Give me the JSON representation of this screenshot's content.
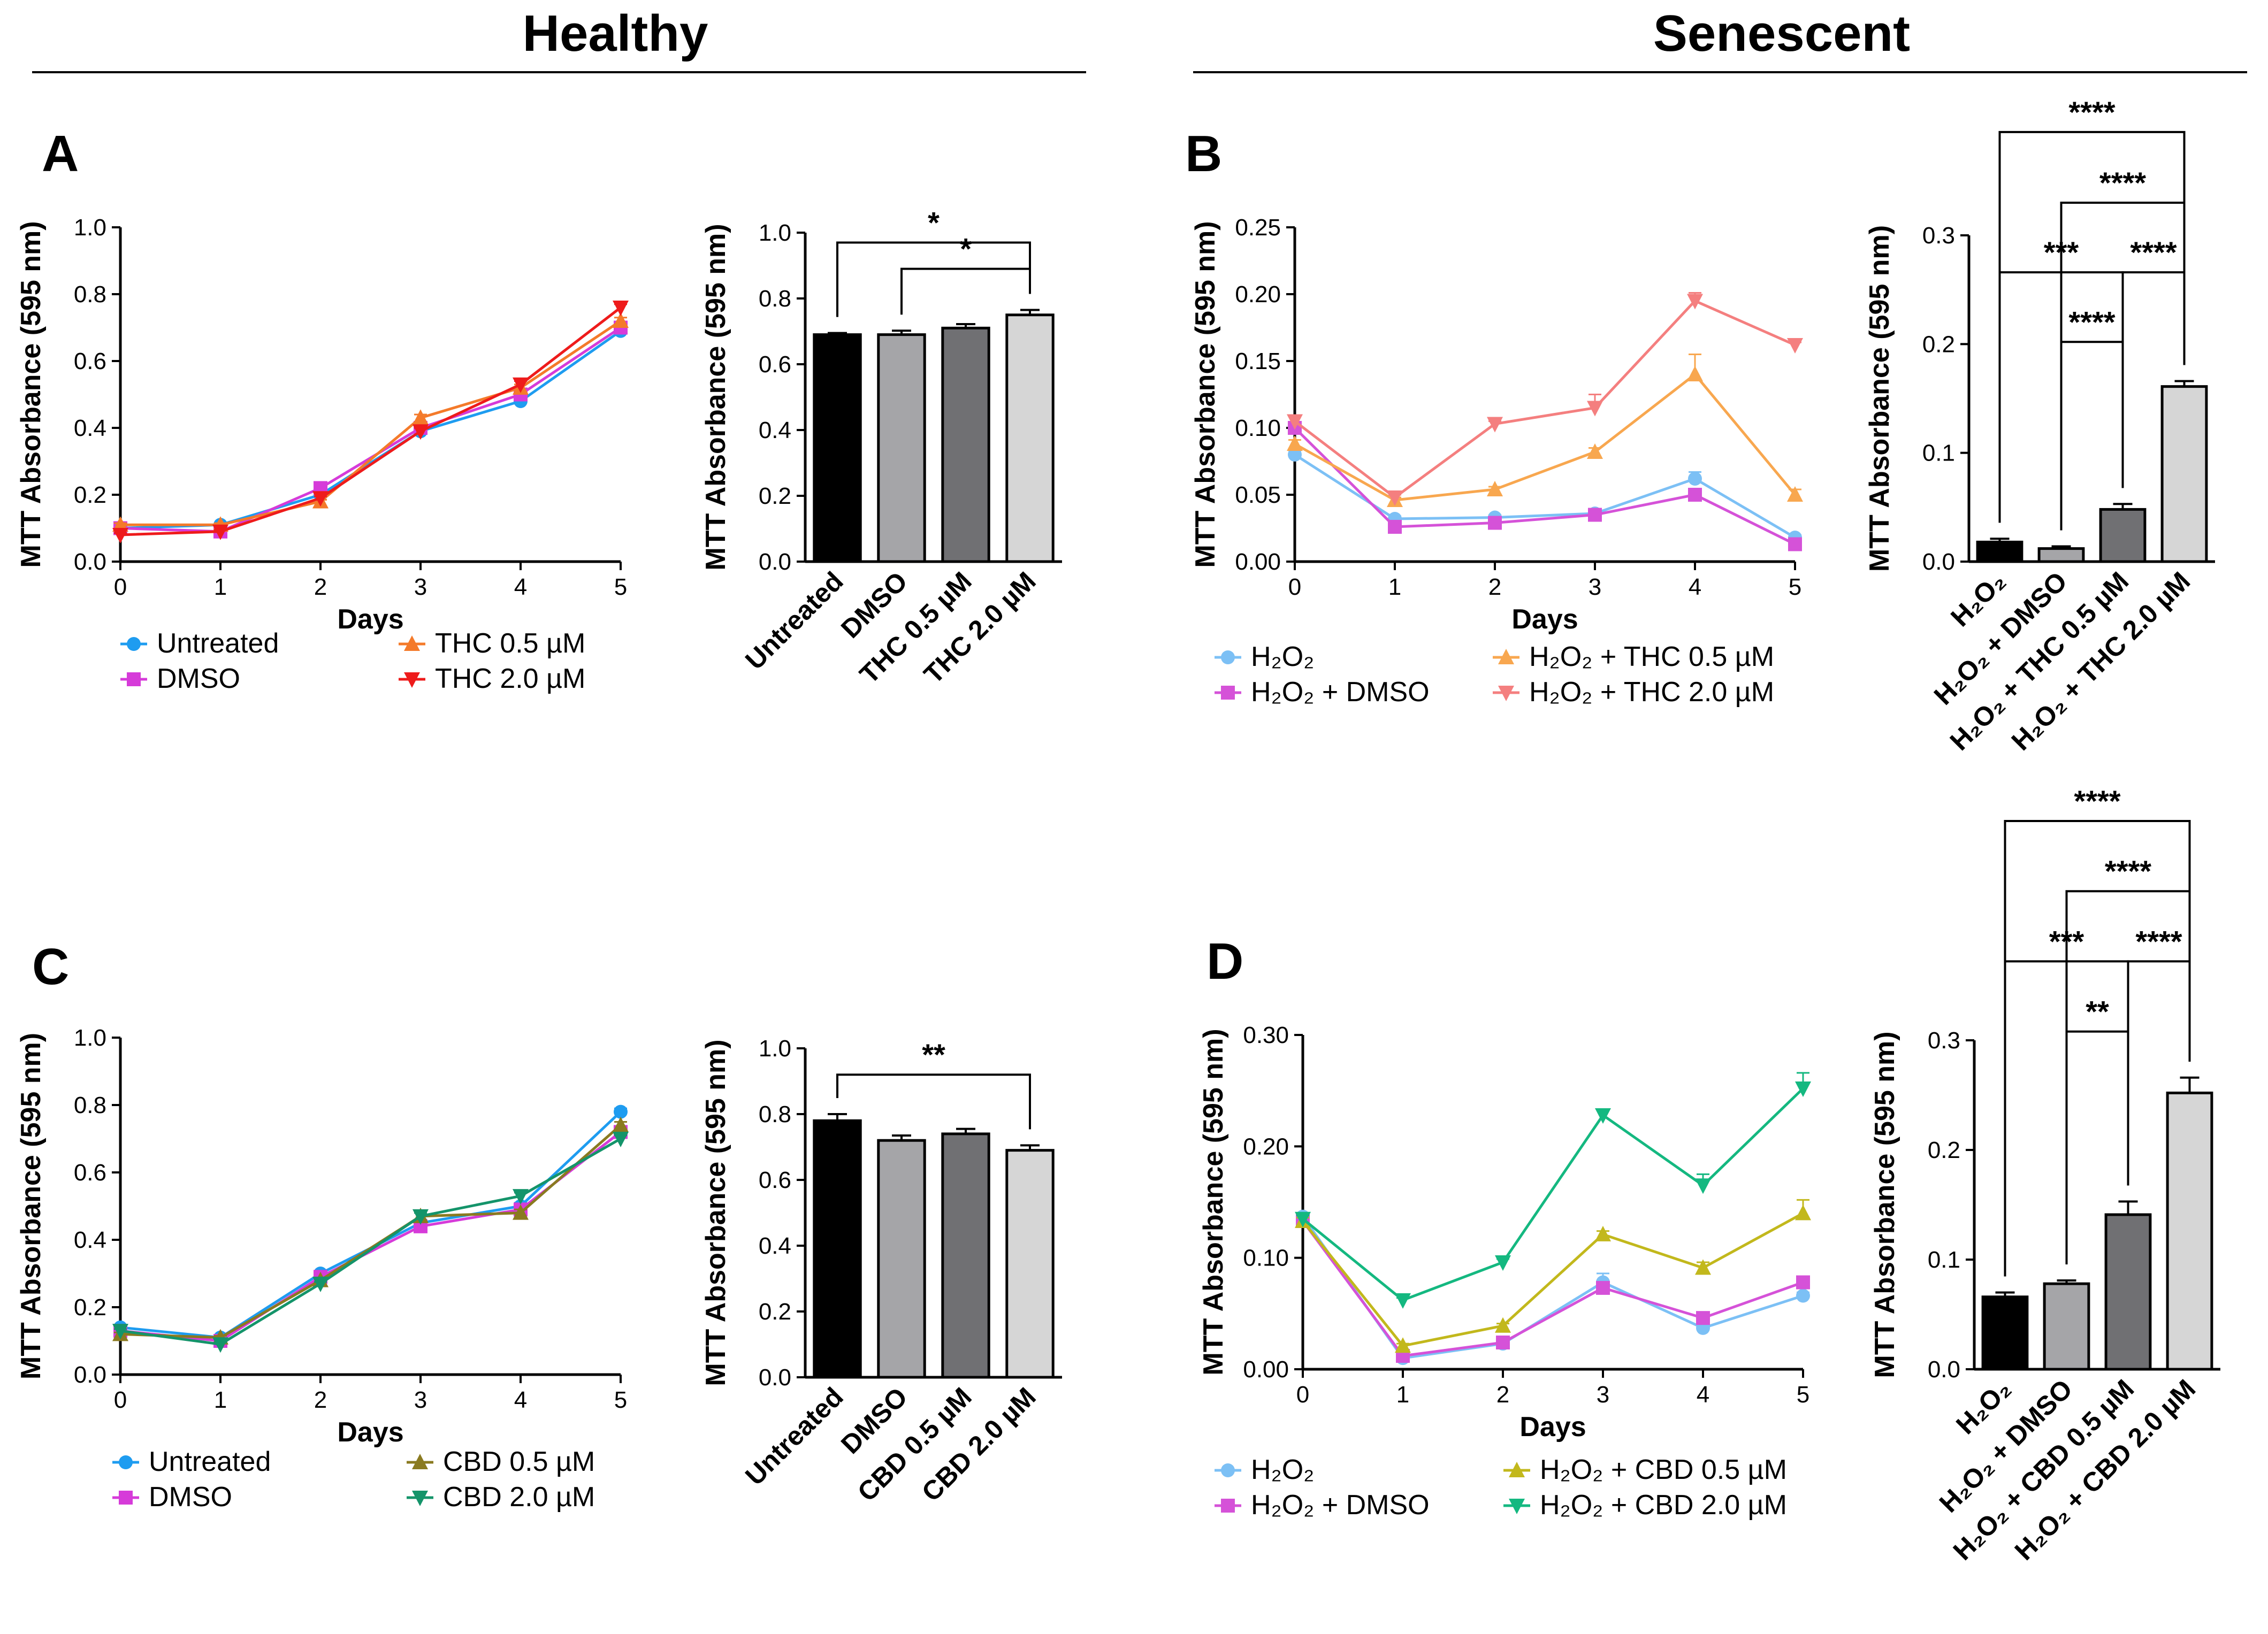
{
  "titles": {
    "healthy": "Healthy",
    "senescent": "Senescent"
  },
  "panels": {
    "A": "A",
    "B": "B",
    "C": "C",
    "D": "D"
  },
  "chart_data": [
    {
      "id": "A-line",
      "type": "line",
      "panel": "A",
      "xlabel": "Days",
      "ylabel": "MTT Absorbance (595 nm)",
      "xlim": [
        0,
        5
      ],
      "ylim": [
        0,
        1.0
      ],
      "xticks": [
        "0",
        "1",
        "2",
        "3",
        "4",
        "5"
      ],
      "yticks": [
        "0.0",
        "0.2",
        "0.4",
        "0.6",
        "0.8",
        "1.0"
      ],
      "x": [
        0,
        1,
        2,
        3,
        4,
        5
      ],
      "series": [
        {
          "name": "Untreated",
          "color": "#1e9cf0",
          "marker": "circle",
          "values": [
            0.1,
            0.11,
            0.2,
            0.39,
            0.48,
            0.69
          ],
          "errors": [
            0.005,
            0.005,
            0.005,
            0.01,
            0.01,
            0.01
          ]
        },
        {
          "name": "DMSO",
          "color": "#d63bd9",
          "marker": "square",
          "values": [
            0.1,
            0.09,
            0.22,
            0.4,
            0.5,
            0.7
          ],
          "errors": [
            0.005,
            0.005,
            0.005,
            0.01,
            0.01,
            0.01
          ]
        },
        {
          "name": "THC 0.5 µM",
          "color": "#f47a2a",
          "marker": "triangle-up",
          "values": [
            0.11,
            0.11,
            0.18,
            0.43,
            0.52,
            0.72
          ],
          "errors": [
            0.005,
            0.005,
            0.005,
            0.01,
            0.01,
            0.01
          ]
        },
        {
          "name": "THC 2.0 µM",
          "color": "#ee1b1b",
          "marker": "triangle-down",
          "values": [
            0.08,
            0.09,
            0.19,
            0.39,
            0.53,
            0.76
          ],
          "errors": [
            0.005,
            0.005,
            0.005,
            0.01,
            0.01,
            0.01
          ]
        }
      ],
      "legend_cols": [
        [
          "Untreated",
          "DMSO"
        ],
        [
          "THC 0.5 µM",
          "THC 2.0 µM"
        ]
      ]
    },
    {
      "id": "A-bar",
      "type": "bar",
      "panel": "A",
      "ylabel": "MTT Absorbance (595 nm)",
      "ylim": [
        0,
        1.0
      ],
      "yticks": [
        "0.0",
        "0.2",
        "0.4",
        "0.6",
        "0.8",
        "1.0"
      ],
      "categories": [
        "Untreated",
        "DMSO",
        "THC 0.5 µM",
        "THC 2.0 µM"
      ],
      "values": [
        0.69,
        0.69,
        0.71,
        0.75
      ],
      "errors": [
        0.005,
        0.012,
        0.012,
        0.015
      ],
      "colors": [
        "#000000",
        "#a5a5a8",
        "#707073",
        "#d6d6d6"
      ],
      "significance": [
        {
          "from": 0,
          "to": 3,
          "label": "*",
          "y": 0.97
        },
        {
          "from": 1,
          "to": 3,
          "label": "*",
          "y": 0.89
        }
      ]
    },
    {
      "id": "B-line",
      "type": "line",
      "panel": "B",
      "xlabel": "Days",
      "ylabel": "MTT Absorbance (595 nm)",
      "xlim": [
        0,
        5
      ],
      "ylim": [
        0,
        0.25
      ],
      "xticks": [
        "0",
        "1",
        "2",
        "3",
        "4",
        "5"
      ],
      "yticks": [
        "0.00",
        "0.05",
        "0.10",
        "0.15",
        "0.20",
        "0.25"
      ],
      "x": [
        0,
        1,
        2,
        3,
        4,
        5
      ],
      "series": [
        {
          "name": "H₂O₂",
          "color": "#7cc0f5",
          "marker": "circle",
          "values": [
            0.08,
            0.032,
            0.033,
            0.036,
            0.062,
            0.018
          ],
          "errors": [
            0.003,
            0.002,
            0.002,
            0.002,
            0.005,
            0.002
          ]
        },
        {
          "name": "H₂O₂ + DMSO",
          "color": "#d552d8",
          "marker": "square",
          "values": [
            0.1,
            0.026,
            0.029,
            0.035,
            0.05,
            0.013
          ],
          "errors": [
            0.003,
            0.002,
            0.002,
            0.002,
            0.003,
            0.002
          ]
        },
        {
          "name": "H₂O₂ + THC 0.5 µM",
          "color": "#f8a74f",
          "marker": "triangle-up",
          "values": [
            0.088,
            0.046,
            0.054,
            0.082,
            0.14,
            0.05
          ],
          "errors": [
            0.003,
            0.002,
            0.002,
            0.003,
            0.015,
            0.004
          ]
        },
        {
          "name": "H₂O₂ + THC 2.0 µM",
          "color": "#f47f7f",
          "marker": "triangle-down",
          "values": [
            0.105,
            0.048,
            0.103,
            0.115,
            0.195,
            0.162
          ],
          "errors": [
            0.004,
            0.002,
            0.002,
            0.01,
            0.006,
            0.002
          ]
        }
      ],
      "legend_cols": [
        [
          "H₂O₂",
          "H₂O₂ + DMSO"
        ],
        [
          "H₂O₂ + THC 0.5 µM",
          "H₂O₂ + THC 2.0 µM"
        ]
      ]
    },
    {
      "id": "B-bar",
      "type": "bar",
      "panel": "B",
      "ylabel": "MTT Absorbance (595 nm)",
      "ylim": [
        0,
        0.3
      ],
      "yticks": [
        "0.0",
        "0.1",
        "0.2",
        "0.3"
      ],
      "categories": [
        "H₂O₂",
        "H₂O₂ + DMSO",
        "H₂O₂ + THC 0.5 µM",
        "H₂O₂ + THC 2.0 µM"
      ],
      "values": [
        0.018,
        0.012,
        0.048,
        0.161
      ],
      "errors": [
        0.003,
        0.002,
        0.005,
        0.005
      ],
      "colors": [
        "#000000",
        "#a5a5a8",
        "#707073",
        "#d6d6d6"
      ],
      "significance": [
        {
          "from": 0,
          "to": 3,
          "label": "****",
          "y": 0.395
        },
        {
          "from": 1,
          "to": 3,
          "label": "****",
          "y": 0.33
        },
        {
          "from": 0,
          "to": 2,
          "label": "***",
          "y": 0.266
        },
        {
          "from": 2,
          "to": 3,
          "label": "****",
          "y": 0.266
        },
        {
          "from": 1,
          "to": 2,
          "label": "****",
          "y": 0.202
        }
      ]
    },
    {
      "id": "C-line",
      "type": "line",
      "panel": "C",
      "xlabel": "Days",
      "ylabel": "MTT Absorbance (595 nm)",
      "xlim": [
        0,
        5
      ],
      "ylim": [
        0,
        1.0
      ],
      "xticks": [
        "0",
        "1",
        "2",
        "3",
        "4",
        "5"
      ],
      "yticks": [
        "0.0",
        "0.2",
        "0.4",
        "0.6",
        "0.8",
        "1.0"
      ],
      "x": [
        0,
        1,
        2,
        3,
        4,
        5
      ],
      "series": [
        {
          "name": "Untreated",
          "color": "#1e9cf0",
          "marker": "circle",
          "values": [
            0.14,
            0.11,
            0.3,
            0.45,
            0.5,
            0.78
          ],
          "errors": [
            0.005,
            0.005,
            0.005,
            0.01,
            0.01,
            0.01
          ]
        },
        {
          "name": "DMSO",
          "color": "#d63bd9",
          "marker": "square",
          "values": [
            0.13,
            0.1,
            0.29,
            0.44,
            0.49,
            0.72
          ],
          "errors": [
            0.005,
            0.005,
            0.005,
            0.01,
            0.01,
            0.01
          ]
        },
        {
          "name": "CBD 0.5 µM",
          "color": "#8a7a20",
          "marker": "triangle-up",
          "values": [
            0.12,
            0.11,
            0.28,
            0.47,
            0.48,
            0.74
          ],
          "errors": [
            0.005,
            0.005,
            0.005,
            0.01,
            0.01,
            0.01
          ]
        },
        {
          "name": "CBD 2.0 µM",
          "color": "#14946a",
          "marker": "triangle-down",
          "values": [
            0.13,
            0.09,
            0.27,
            0.47,
            0.53,
            0.7
          ],
          "errors": [
            0.005,
            0.005,
            0.005,
            0.01,
            0.01,
            0.01
          ]
        }
      ],
      "legend_cols": [
        [
          "Untreated",
          "DMSO"
        ],
        [
          "CBD 0.5 µM",
          "CBD 2.0 µM"
        ]
      ]
    },
    {
      "id": "C-bar",
      "type": "bar",
      "panel": "C",
      "ylabel": "MTT Absorbance (595 nm)",
      "ylim": [
        0,
        1.0
      ],
      "yticks": [
        "0.0",
        "0.2",
        "0.4",
        "0.6",
        "0.8",
        "1.0"
      ],
      "categories": [
        "Untreated",
        "DMSO",
        "CBD 0.5 µM",
        "CBD 2.0 µM"
      ],
      "values": [
        0.78,
        0.72,
        0.74,
        0.69
      ],
      "errors": [
        0.02,
        0.015,
        0.015,
        0.015
      ],
      "colors": [
        "#000000",
        "#a5a5a8",
        "#707073",
        "#d6d6d6"
      ],
      "significance": [
        {
          "from": 0,
          "to": 3,
          "label": "**",
          "y": 0.92
        }
      ]
    },
    {
      "id": "D-line",
      "type": "line",
      "panel": "D",
      "xlabel": "Days",
      "ylabel": "MTT Absorbance (595 nm)",
      "xlim": [
        0,
        5
      ],
      "ylim": [
        0,
        0.3
      ],
      "xticks": [
        "0",
        "1",
        "2",
        "3",
        "4",
        "5"
      ],
      "yticks": [
        "0.00",
        "0.10",
        "0.20",
        "0.30"
      ],
      "x": [
        0,
        1,
        2,
        3,
        4,
        5
      ],
      "series": [
        {
          "name": "H₂O₂",
          "color": "#7cc0f5",
          "marker": "circle",
          "values": [
            0.137,
            0.01,
            0.023,
            0.078,
            0.037,
            0.066
          ],
          "errors": [
            0.003,
            0.002,
            0.002,
            0.008,
            0.003,
            0.003
          ]
        },
        {
          "name": "H₂O₂ + DMSO",
          "color": "#d552d8",
          "marker": "square",
          "values": [
            0.133,
            0.012,
            0.024,
            0.073,
            0.046,
            0.078
          ],
          "errors": [
            0.003,
            0.002,
            0.002,
            0.004,
            0.003,
            0.003
          ]
        },
        {
          "name": "H₂O₂ + CBD 0.5 µM",
          "color": "#c2b81c",
          "marker": "triangle-up",
          "values": [
            0.133,
            0.021,
            0.039,
            0.121,
            0.091,
            0.14
          ],
          "errors": [
            0.003,
            0.002,
            0.002,
            0.003,
            0.005,
            0.012
          ]
        },
        {
          "name": "H₂O₂ + CBD 2.0 µM",
          "color": "#14b880",
          "marker": "triangle-down",
          "values": [
            0.135,
            0.062,
            0.096,
            0.228,
            0.165,
            0.252
          ],
          "errors": [
            0.003,
            0.002,
            0.003,
            0.005,
            0.01,
            0.014
          ]
        }
      ],
      "legend_cols": [
        [
          "H₂O₂",
          "H₂O₂ + DMSO"
        ],
        [
          "H₂O₂ + CBD 0.5 µM",
          "H₂O₂ + CBD 2.0 µM"
        ]
      ]
    },
    {
      "id": "D-bar",
      "type": "bar",
      "panel": "D",
      "ylabel": "MTT Absorbance (595 nm)",
      "ylim": [
        0,
        0.3
      ],
      "yticks": [
        "0.0",
        "0.1",
        "0.2",
        "0.3"
      ],
      "categories": [
        "H₂O₂",
        "H₂O₂ + DMSO",
        "H₂O₂ + CBD 0.5 µM",
        "H₂O₂ + CBD 2.0 µM"
      ],
      "values": [
        0.066,
        0.078,
        0.141,
        0.252
      ],
      "errors": [
        0.004,
        0.003,
        0.012,
        0.014
      ],
      "colors": [
        "#000000",
        "#a5a5a8",
        "#707073",
        "#d6d6d6"
      ],
      "significance": [
        {
          "from": 0,
          "to": 3,
          "label": "****",
          "y": 0.5
        },
        {
          "from": 1,
          "to": 3,
          "label": "****",
          "y": 0.436
        },
        {
          "from": 0,
          "to": 2,
          "label": "***",
          "y": 0.372
        },
        {
          "from": 2,
          "to": 3,
          "label": "****",
          "y": 0.372
        },
        {
          "from": 1,
          "to": 2,
          "label": "**",
          "y": 0.308
        }
      ]
    }
  ]
}
